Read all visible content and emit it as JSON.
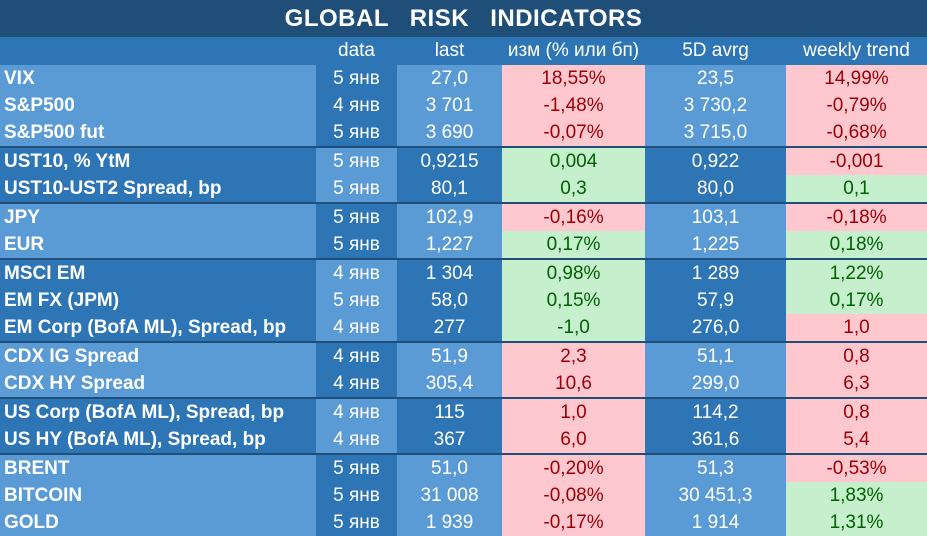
{
  "title": "GLOBAL   RISK   INDICATORS",
  "headers": [
    "",
    "data",
    "last",
    "изм (% или бп)",
    "5D avrg",
    "weekly trend"
  ],
  "rows": [
    {
      "name": "VIX",
      "date": "5 янв",
      "last": "27,0",
      "chg": "18,55%",
      "avg": "23,5",
      "trend": "14,99%",
      "chg_s": "neg",
      "trend_s": "neg",
      "group": 0
    },
    {
      "name": "S&P500",
      "date": "4 янв",
      "last": "3 701",
      "chg": "-1,48%",
      "avg": "3 730,2",
      "trend": "-0,79%",
      "chg_s": "neg",
      "trend_s": "neg",
      "group": 0
    },
    {
      "name": "S&P500 fut",
      "date": "5 янв",
      "last": "3 690",
      "chg": "-0,07%",
      "avg": "3 715,0",
      "trend": "-0,68%",
      "chg_s": "neg",
      "trend_s": "neg",
      "group": 0
    },
    {
      "name": "UST10, % YtM",
      "date": "5 янв",
      "last": "0,9215",
      "chg": "0,004",
      "avg": "0,922",
      "trend": "-0,001",
      "chg_s": "pos",
      "trend_s": "neg",
      "group": 1
    },
    {
      "name": "UST10-UST2 Spread, bp",
      "date": "5 янв",
      "last": "80,1",
      "chg": "0,3",
      "avg": "80,0",
      "trend": "0,1",
      "chg_s": "pos",
      "trend_s": "pos",
      "group": 1
    },
    {
      "name": "JPY",
      "date": "5 янв",
      "last": "102,9",
      "chg": "-0,16%",
      "avg": "103,1",
      "trend": "-0,18%",
      "chg_s": "neg",
      "trend_s": "neg",
      "group": 0
    },
    {
      "name": "EUR",
      "date": "5 янв",
      "last": "1,227",
      "chg": "0,17%",
      "avg": "1,225",
      "trend": "0,18%",
      "chg_s": "pos",
      "trend_s": "pos",
      "group": 0
    },
    {
      "name": "MSCI EM",
      "date": "4 янв",
      "last": "1 304",
      "chg": "0,98%",
      "avg": "1 289",
      "trend": "1,22%",
      "chg_s": "pos",
      "trend_s": "pos",
      "group": 1
    },
    {
      "name": "EM FX (JPM)",
      "date": "5 янв",
      "last": "58,0",
      "chg": "0,15%",
      "avg": "57,9",
      "trend": "0,17%",
      "chg_s": "pos",
      "trend_s": "pos",
      "group": 1
    },
    {
      "name": "EM Corp (BofA ML), Spread, bp",
      "date": "4 янв",
      "last": "277",
      "chg": "-1,0",
      "avg": "276,0",
      "trend": "1,0",
      "chg_s": "pos",
      "trend_s": "neg",
      "group": 1
    },
    {
      "name": "CDX IG Spread",
      "date": "4 янв",
      "last": "51,9",
      "chg": "2,3",
      "avg": "51,1",
      "trend": "0,8",
      "chg_s": "neg",
      "trend_s": "neg",
      "group": 0
    },
    {
      "name": "CDX HY Spread",
      "date": "4 янв",
      "last": "305,4",
      "chg": "10,6",
      "avg": "299,0",
      "trend": "6,3",
      "chg_s": "neg",
      "trend_s": "neg",
      "group": 0
    },
    {
      "name": "US Corp (BofA ML), Spread, bp",
      "date": "4 янв",
      "last": "115",
      "chg": "1,0",
      "avg": "114,2",
      "trend": "0,8",
      "chg_s": "neg",
      "trend_s": "neg",
      "group": 1
    },
    {
      "name": "US HY (BofA ML), Spread, bp",
      "date": "4 янв",
      "last": "367",
      "chg": "6,0",
      "avg": "361,6",
      "trend": "5,4",
      "chg_s": "neg",
      "trend_s": "neg",
      "group": 1
    },
    {
      "name": "BRENT",
      "date": "5 янв",
      "last": "51,0",
      "chg": "-0,20%",
      "avg": "51,3",
      "trend": "-0,53%",
      "chg_s": "neg",
      "trend_s": "neg",
      "group": 0
    },
    {
      "name": "BITCOIN",
      "date": "5 янв",
      "last": "31 008",
      "chg": "-0,08%",
      "avg": "30 451,3",
      "trend": "1,83%",
      "chg_s": "neg",
      "trend_s": "pos",
      "group": 0
    },
    {
      "name": "GOLD",
      "date": "5 янв",
      "last": "1 939",
      "chg": "-0,17%",
      "avg": "1 914",
      "trend": "1,31%",
      "chg_s": "neg",
      "trend_s": "pos",
      "group": 0
    }
  ]
}
